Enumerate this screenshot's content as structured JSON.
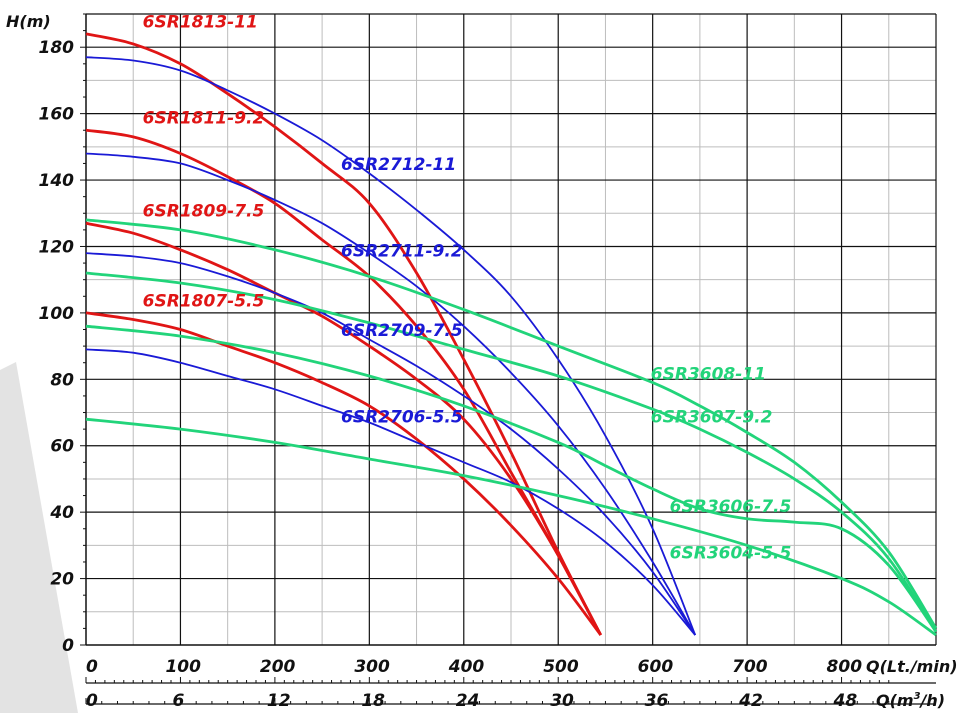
{
  "chart_data": {
    "type": "line",
    "ylabel": "H(m)",
    "xlabel": "Q(Lt./min)",
    "xlabel2": "Q(m³/h)",
    "xlabel2_base": "Q(m",
    "xlabel2_sup": "3",
    "xlabel2_tail": "/h)",
    "xlim": [
      0,
      900
    ],
    "ylim": [
      0,
      190
    ],
    "x_ticks": [
      0,
      100,
      200,
      300,
      400,
      500,
      600,
      700,
      800
    ],
    "x_tick_labels": [
      "0",
      "100",
      "200",
      "300",
      "400",
      "500",
      "600",
      "700",
      "800"
    ],
    "x2_ticks_lpm": [
      0,
      100,
      200,
      300,
      400,
      500,
      600,
      700,
      800
    ],
    "x2_tick_labels": [
      "0",
      "6",
      "12",
      "18",
      "24",
      "30",
      "36",
      "42",
      "48"
    ],
    "y_ticks": [
      0,
      20,
      40,
      60,
      80,
      100,
      120,
      140,
      160,
      180
    ],
    "y_tick_labels": [
      "0",
      "20",
      "40",
      "60",
      "80",
      "100",
      "120",
      "140",
      "160",
      "180"
    ],
    "grid": true,
    "colors": {
      "red": "#e01515",
      "blue": "#1a1ad6",
      "green": "#22d47a"
    },
    "series": [
      {
        "name": "6SR1813-11",
        "color": "red",
        "x": [
          0,
          50,
          100,
          150,
          200,
          250,
          300,
          350,
          400,
          450,
          500,
          545
        ],
        "y": [
          184,
          181,
          175,
          166,
          156,
          145,
          133,
          112,
          86,
          58,
          28,
          3
        ],
        "label_x": 60,
        "label_y": 186
      },
      {
        "name": "6SR1811-9.2",
        "color": "red",
        "x": [
          0,
          50,
          100,
          150,
          200,
          250,
          300,
          350,
          400,
          450,
          500,
          545
        ],
        "y": [
          155,
          153,
          148,
          141,
          133,
          122,
          111,
          96,
          77,
          52,
          27,
          3
        ],
        "label_x": 60,
        "label_y": 157
      },
      {
        "name": "6SR1809-7.5",
        "color": "red",
        "x": [
          0,
          50,
          100,
          150,
          200,
          250,
          300,
          350,
          400,
          450,
          500,
          545
        ],
        "y": [
          127,
          124,
          119,
          113,
          106,
          99,
          90,
          80,
          68,
          50,
          27,
          3
        ],
        "label_x": 60,
        "label_y": 129
      },
      {
        "name": "6SR1807-5.5",
        "color": "red",
        "x": [
          0,
          50,
          100,
          150,
          200,
          250,
          300,
          350,
          400,
          450,
          500,
          545
        ],
        "y": [
          100,
          98,
          95,
          90,
          85,
          79,
          72,
          62,
          50,
          36,
          20,
          3
        ],
        "label_x": 60,
        "label_y": 102
      },
      {
        "name": "6SR2712-11",
        "color": "blue",
        "x": [
          0,
          50,
          100,
          150,
          200,
          250,
          300,
          350,
          400,
          450,
          500,
          550,
          600,
          645
        ],
        "y": [
          177,
          176,
          173,
          167,
          160,
          152,
          142,
          131,
          119,
          105,
          86,
          63,
          35,
          3
        ],
        "label_x": 270,
        "label_y": 143
      },
      {
        "name": "6SR2711-9.2",
        "color": "blue",
        "x": [
          0,
          50,
          100,
          150,
          200,
          250,
          300,
          350,
          400,
          450,
          500,
          550,
          600,
          645
        ],
        "y": [
          148,
          147,
          145,
          140,
          134,
          127,
          118,
          108,
          96,
          82,
          66,
          47,
          25,
          3
        ],
        "label_x": 270,
        "label_y": 117
      },
      {
        "name": "6SR2709-7.5",
        "color": "blue",
        "x": [
          0,
          50,
          100,
          150,
          200,
          250,
          300,
          350,
          400,
          450,
          500,
          550,
          600,
          645
        ],
        "y": [
          118,
          117,
          115,
          111,
          106,
          100,
          92,
          84,
          75,
          65,
          53,
          39,
          22,
          3
        ],
        "label_x": 270,
        "label_y": 93
      },
      {
        "name": "6SR2706-5.5",
        "color": "blue",
        "x": [
          0,
          50,
          100,
          150,
          200,
          250,
          300,
          350,
          400,
          450,
          500,
          550,
          600,
          645
        ],
        "y": [
          89,
          88,
          85,
          81,
          77,
          72,
          67,
          61,
          55,
          49,
          41,
          31,
          18,
          3
        ],
        "label_x": 270,
        "label_y": 67
      },
      {
        "name": "6SR3608-11",
        "color": "green",
        "x": [
          0,
          100,
          200,
          300,
          400,
          500,
          600,
          650,
          700,
          750,
          800,
          850,
          900
        ],
        "y": [
          128,
          125,
          119,
          111,
          101,
          90,
          79,
          72,
          64,
          55,
          43,
          28,
          5
        ],
        "label_x": 598,
        "label_y": 80
      },
      {
        "name": "6SR3607-9.2",
        "color": "green",
        "x": [
          0,
          100,
          200,
          300,
          400,
          500,
          600,
          650,
          700,
          750,
          800,
          850,
          900
        ],
        "y": [
          112,
          109,
          104,
          97,
          89,
          81,
          71,
          65,
          58,
          50,
          40,
          26,
          4
        ],
        "label_x": 598,
        "label_y": 67
      },
      {
        "name": "6SR3606-7.5",
        "color": "green",
        "x": [
          0,
          100,
          200,
          300,
          400,
          500,
          550,
          600,
          650,
          700,
          750,
          800,
          850,
          900
        ],
        "y": [
          96,
          93,
          88,
          81,
          72,
          61,
          54,
          47,
          41,
          38,
          37,
          35,
          24,
          4
        ],
        "label_x": 618,
        "label_y": 40
      },
      {
        "name": "6SR3604-5.5",
        "color": "green",
        "x": [
          0,
          100,
          200,
          300,
          400,
          500,
          600,
          700,
          800,
          850,
          900
        ],
        "y": [
          68,
          65,
          61,
          56,
          51,
          45,
          38,
          30,
          20,
          13,
          3
        ],
        "label_x": 618,
        "label_y": 26
      }
    ]
  }
}
